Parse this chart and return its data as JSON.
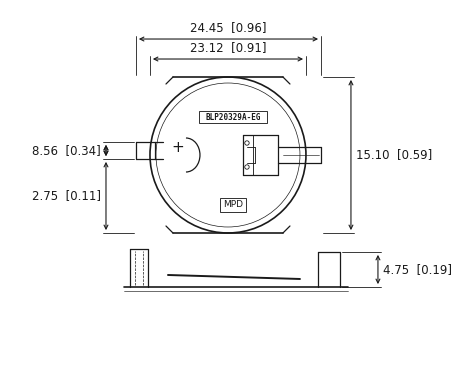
{
  "bg_color": "#ffffff",
  "line_color": "#1a1a1a",
  "font_size_dim": 8.5,
  "dim_24_45": "24.45  [0.96]",
  "dim_23_12": "23.12  [0.91]",
  "dim_15_10": "15.10  [0.59]",
  "dim_8_56": "8.56  [0.34]",
  "dim_2_75": "2.75  [0.11]",
  "dim_4_75": "4.75  [0.19]",
  "part_label": "BLP20329A-EG",
  "mpd_label": "MPD"
}
